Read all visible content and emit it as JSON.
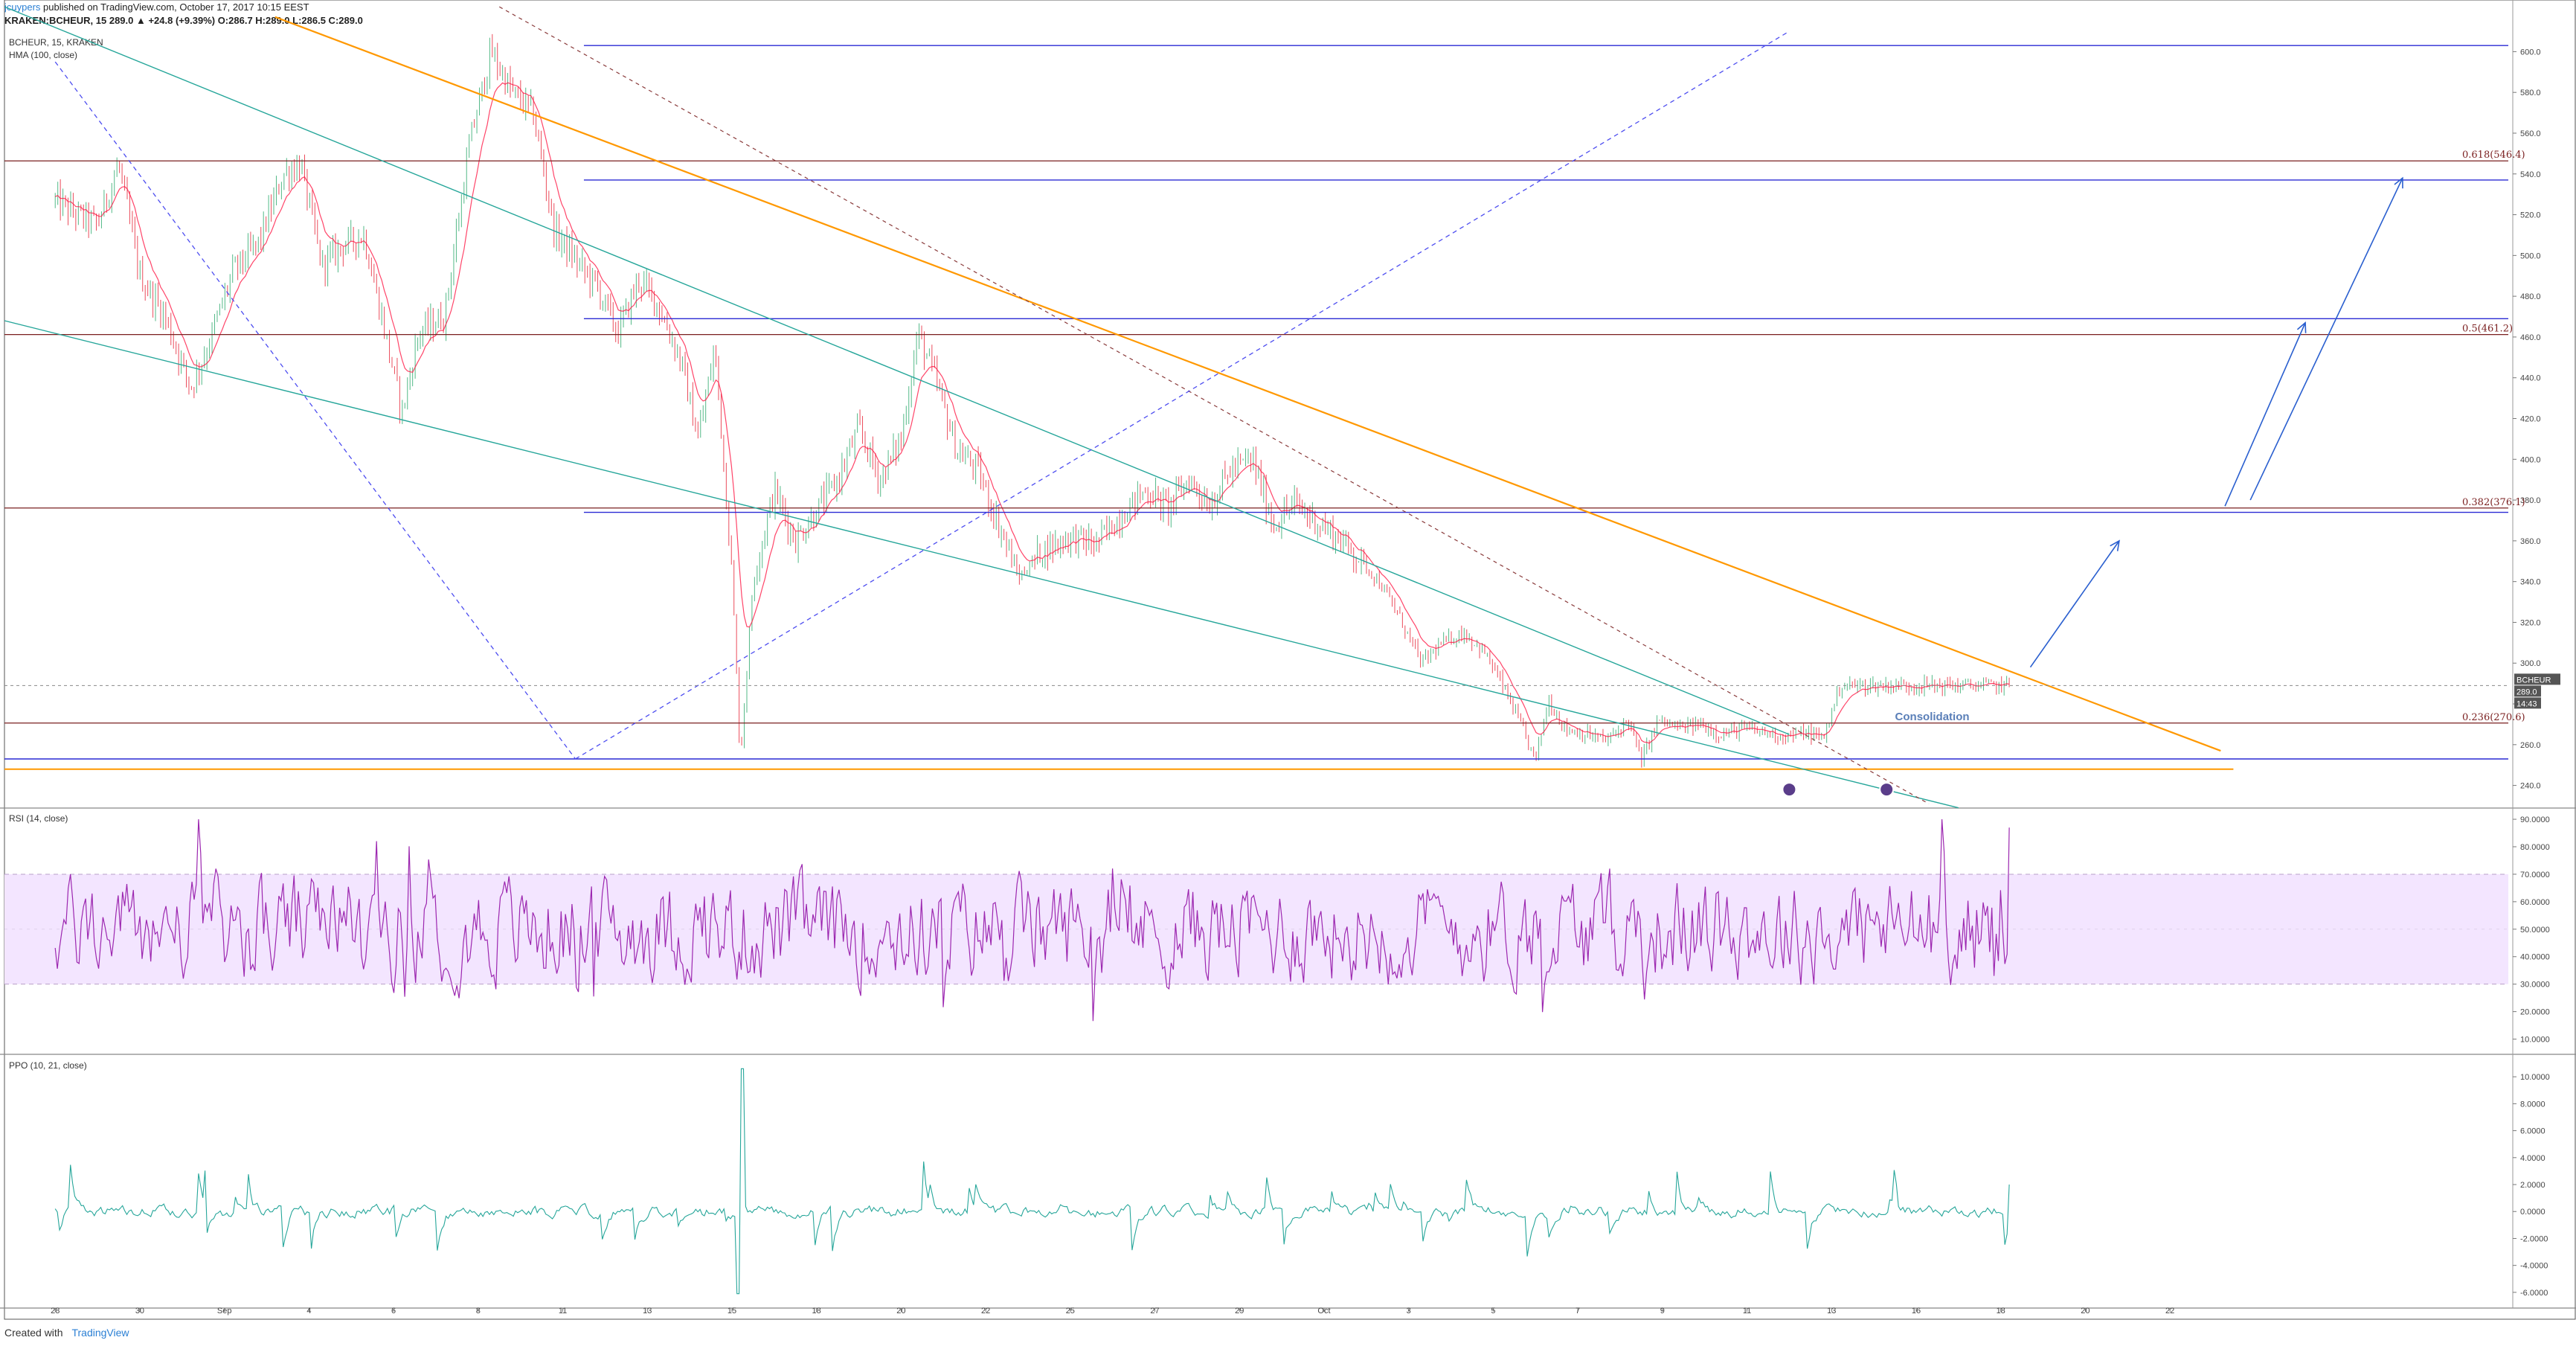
{
  "header": {
    "author": "jcuypers",
    "published_text": "published on TradingView.com, October 17, 2017 10:15 EEST",
    "symbol_line": "KRAKEN:BCHEUR, 15 289.0 ▲ +24.8 (+9.39%) O:286.7 H:289.0 L:286.5 C:289.0",
    "legend_symbol": "BCHEUR, 15, KRAKEN",
    "legend_indicator": "HMA (100, close)"
  },
  "footer": {
    "created_with": "Created with",
    "brand": "TradingView"
  },
  "colors": {
    "candle_up": "#53b987",
    "candle_down": "#eb4d5c",
    "hma": "#ff1744",
    "fib": "#7a1f1f",
    "hline": "#2a2ad4",
    "orange": "#ff9800",
    "teal": "#26a69a",
    "rsi": "#9c27b0",
    "rsi_band": "#f3e5ff",
    "ppo": "#26a69a",
    "arrow": "#2a5fcf",
    "price_badge": "#555555"
  },
  "chart_data": [
    {
      "type": "candlestick",
      "title": "BCHEUR, 15, KRAKEN",
      "x_ticks": [
        "28",
        "30",
        "Sep",
        "4",
        "6",
        "8",
        "11",
        "13",
        "15",
        "18",
        "20",
        "22",
        "25",
        "27",
        "29",
        "Oct",
        "3",
        "5",
        "7",
        "9",
        "11",
        "13",
        "16",
        "18",
        "20",
        "22"
      ],
      "x_tick_index": [
        0,
        2,
        4,
        6,
        8,
        10,
        12,
        14,
        16,
        18,
        20,
        22,
        24,
        26,
        28,
        30,
        32,
        34,
        36,
        38,
        40,
        42,
        44,
        46,
        48,
        50
      ],
      "data_end_index": 46.2,
      "x_range_index": [
        -1.2,
        58
      ],
      "ylim": [
        230,
        610
      ],
      "y_ticks": [
        240,
        260,
        280,
        300,
        320,
        340,
        360,
        380,
        400,
        420,
        440,
        460,
        480,
        500,
        520,
        540,
        560,
        580,
        600
      ],
      "y_tick_labels": [
        "240.0",
        "260.0",
        "280.0",
        "300.0",
        "320.0",
        "340.0",
        "360.0",
        "380.0",
        "400.0",
        "420.0",
        "440.0",
        "460.0",
        "480.0",
        "500.0",
        "520.0",
        "540.0",
        "560.0",
        "580.0",
        "600.0"
      ],
      "price_path": [
        [
          0,
          527
        ],
        [
          0.5,
          520
        ],
        [
          1,
          515
        ],
        [
          1.5,
          545
        ],
        [
          2,
          490
        ],
        [
          2.6,
          470
        ],
        [
          3.2,
          435
        ],
        [
          3.6,
          455
        ],
        [
          4.2,
          492
        ],
        [
          4.8,
          506
        ],
        [
          5.4,
          540
        ],
        [
          5.8,
          545
        ],
        [
          6.3,
          495
        ],
        [
          6.8,
          505
        ],
        [
          7.3,
          510
        ],
        [
          7.8,
          462
        ],
        [
          8.2,
          423
        ],
        [
          8.6,
          462
        ],
        [
          9.2,
          470
        ],
        [
          9.8,
          555
        ],
        [
          10.3,
          600
        ],
        [
          10.8,
          580
        ],
        [
          11.3,
          570
        ],
        [
          11.8,
          512
        ],
        [
          12.4,
          495
        ],
        [
          12.8,
          485
        ],
        [
          13.3,
          462
        ],
        [
          13.8,
          488
        ],
        [
          14.2,
          478
        ],
        [
          14.8,
          448
        ],
        [
          15.2,
          410
        ],
        [
          15.6,
          455
        ],
        [
          16.0,
          345
        ],
        [
          16.2,
          252
        ],
        [
          16.5,
          340
        ],
        [
          17.0,
          385
        ],
        [
          17.5,
          360
        ],
        [
          18.0,
          375
        ],
        [
          18.5,
          390
        ],
        [
          19.0,
          415
        ],
        [
          19.5,
          390
        ],
        [
          20.0,
          410
        ],
        [
          20.4,
          462
        ],
        [
          20.8,
          440
        ],
        [
          21.3,
          405
        ],
        [
          21.8,
          395
        ],
        [
          22.3,
          368
        ],
        [
          22.8,
          342
        ],
        [
          23.3,
          355
        ],
        [
          24.0,
          362
        ],
        [
          24.6,
          358
        ],
        [
          25.3,
          375
        ],
        [
          25.8,
          385
        ],
        [
          26.3,
          376
        ],
        [
          26.8,
          390
        ],
        [
          27.3,
          378
        ],
        [
          27.8,
          395
        ],
        [
          28.3,
          400
        ],
        [
          28.8,
          368
        ],
        [
          29.3,
          378
        ],
        [
          29.8,
          370
        ],
        [
          30.3,
          362
        ],
        [
          30.8,
          352
        ],
        [
          31.3,
          340
        ],
        [
          31.8,
          322
        ],
        [
          32.3,
          300
        ],
        [
          32.8,
          310
        ],
        [
          33.3,
          315
        ],
        [
          33.8,
          305
        ],
        [
          34.2,
          290
        ],
        [
          34.6,
          272
        ],
        [
          35.0,
          252
        ],
        [
          35.3,
          282
        ],
        [
          35.7,
          268
        ],
        [
          36.2,
          265
        ],
        [
          36.7,
          262
        ],
        [
          37.2,
          272
        ],
        [
          37.5,
          252
        ],
        [
          37.9,
          272
        ],
        [
          38.4,
          268
        ],
        [
          38.9,
          270
        ],
        [
          39.4,
          265
        ],
        [
          39.9,
          268
        ],
        [
          40.4,
          266
        ],
        [
          40.9,
          264
        ],
        [
          41.4,
          266
        ],
        [
          41.8,
          263
        ],
        [
          42.2,
          289
        ]
      ],
      "last_price": "289.0",
      "countdown": "14:43",
      "symbol_badge": "BCHEUR",
      "fib_levels": [
        {
          "label": "0.618(546.4)",
          "value": 546.4
        },
        {
          "label": "0.5(461.2)",
          "value": 461.2
        },
        {
          "label": "0.382(376.1)",
          "value": 376.1
        },
        {
          "label": "0.236(270.6)",
          "value": 270.6
        }
      ],
      "horizontal_lines": [
        {
          "value": 603,
          "from": 12.5
        },
        {
          "value": 537,
          "from": 12.5
        },
        {
          "value": 469,
          "from": 12.5
        },
        {
          "value": 374,
          "from": 12.5
        },
        {
          "value": 253,
          "from": -1.2
        }
      ],
      "support_line": {
        "value": 248,
        "to": 51.5
      },
      "trend_lines": [
        {
          "style": "orange",
          "from": [
            5.2,
            617
          ],
          "to": [
            51.2,
            257
          ]
        },
        {
          "style": "teal",
          "from": [
            -1.2,
            622
          ],
          "to": [
            41.0,
            265
          ]
        },
        {
          "style": "teal",
          "from": [
            -1.2,
            468
          ],
          "to": [
            45.0,
            229
          ]
        },
        {
          "style": "dashed-red",
          "from": [
            10.5,
            622
          ],
          "to": [
            44.3,
            231
          ]
        },
        {
          "style": "dashed-blue",
          "from": [
            0.0,
            595
          ],
          "to": [
            12.3,
            253
          ]
        },
        {
          "style": "dashed-blue",
          "from": [
            12.3,
            253
          ],
          "to": [
            41.0,
            610
          ]
        }
      ],
      "arrows": [
        {
          "from": [
            46.7,
            298
          ],
          "to": [
            48.8,
            360
          ]
        },
        {
          "from": [
            51.3,
            377
          ],
          "to": [
            53.2,
            467
          ]
        },
        {
          "from": [
            51.9,
            380
          ],
          "to": [
            55.5,
            538
          ]
        }
      ],
      "annotation": {
        "text": "Consolidation",
        "x": 43.5,
        "y": 272
      },
      "markers": [
        {
          "x": 41.0,
          "y": 238
        },
        {
          "x": 43.3,
          "y": 238
        }
      ]
    },
    {
      "type": "line",
      "title": "RSI (14, close)",
      "ylim": [
        5,
        93
      ],
      "y_ticks": [
        10,
        20,
        30,
        40,
        50,
        60,
        70,
        80,
        90
      ],
      "y_tick_labels": [
        "10.0000",
        "20.0000",
        "30.0000",
        "40.0000",
        "50.0000",
        "60.0000",
        "70.0000",
        "80.0000",
        "90.0000"
      ],
      "band": [
        30,
        70
      ],
      "last_value": 87,
      "approx_mean": 50
    },
    {
      "type": "line",
      "title": "PPO (10, 21, close)",
      "ylim": [
        -7,
        11.5
      ],
      "y_ticks": [
        -6,
        -4,
        -2,
        0,
        2,
        4,
        6,
        8,
        10
      ],
      "y_tick_labels": [
        "-6.0000",
        "-4.0000",
        "-2.0000",
        "0.0000",
        "2.0000",
        "4.0000",
        "6.0000",
        "8.0000",
        "10.0000"
      ],
      "spike_max": 10.6,
      "spike_min": -6.1,
      "last_value": 2.0
    }
  ]
}
